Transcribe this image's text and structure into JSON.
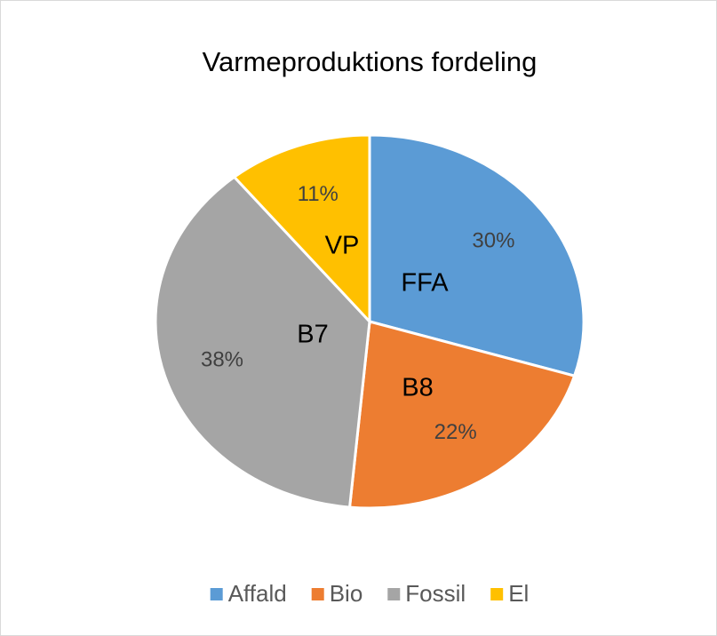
{
  "chart_data": {
    "type": "pie",
    "title": "Varmeproduktions fordeling",
    "categories": [
      "Affald",
      "Bio",
      "Fossil",
      "El"
    ],
    "values": [
      30,
      22,
      38,
      11
    ],
    "value_labels": [
      "30%",
      "22%",
      "38%",
      "11%"
    ],
    "colors": [
      "#5b9bd5",
      "#ed7d31",
      "#a5a5a5",
      "#ffc000"
    ],
    "annotations": [
      "FFA",
      "B8",
      "B7",
      "VP"
    ],
    "legend": "bottom"
  }
}
